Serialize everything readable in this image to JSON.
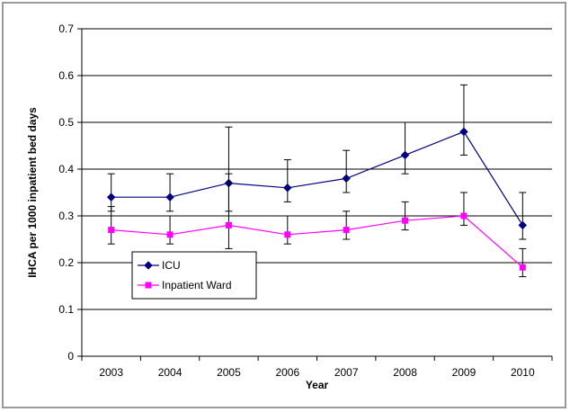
{
  "chart_data": {
    "type": "line",
    "xlabel": "Year",
    "ylabel": "IHCA per 1000 inpatient bed days",
    "ylim": [
      0,
      0.7
    ],
    "yticks": [
      "0",
      "0.1",
      "0.2",
      "0.3",
      "0.4",
      "0.5",
      "0.6",
      "0.7"
    ],
    "categories": [
      "2003",
      "2004",
      "2005",
      "2006",
      "2007",
      "2008",
      "2009",
      "2010"
    ],
    "grid": "horizontal",
    "legend_position": "lower-left",
    "series": [
      {
        "name": "ICU",
        "color": "#000080",
        "marker": "diamond",
        "values": [
          0.34,
          0.34,
          0.37,
          0.36,
          0.38,
          0.43,
          0.48,
          0.28
        ],
        "error_low": [
          0.31,
          0.31,
          0.31,
          0.33,
          0.35,
          0.39,
          0.43,
          0.25
        ],
        "error_high": [
          0.39,
          0.39,
          0.49,
          0.42,
          0.44,
          0.5,
          0.58,
          0.35
        ]
      },
      {
        "name": "Inpatient Ward",
        "color": "#ff00ff",
        "marker": "square",
        "values": [
          0.27,
          0.26,
          0.28,
          0.26,
          0.27,
          0.29,
          0.3,
          0.19
        ],
        "error_low": [
          0.24,
          0.24,
          0.23,
          0.24,
          0.25,
          0.27,
          0.28,
          0.17
        ],
        "error_high": [
          0.32,
          0.3,
          0.39,
          0.3,
          0.31,
          0.33,
          0.35,
          0.23
        ]
      }
    ]
  }
}
